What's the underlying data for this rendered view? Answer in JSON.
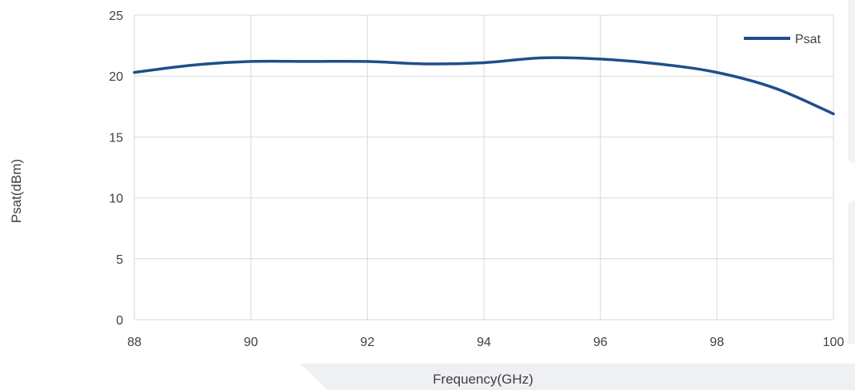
{
  "chart_data": {
    "type": "line",
    "title": "",
    "xlabel": "Frequency(GHz)",
    "ylabel": "Psat(dBm)",
    "xlim": [
      88,
      100
    ],
    "ylim": [
      0,
      25
    ],
    "x_ticks": [
      "88",
      "90",
      "92",
      "94",
      "96",
      "98",
      "100"
    ],
    "y_ticks": [
      "0",
      "5",
      "10",
      "15",
      "20",
      "25"
    ],
    "grid": true,
    "legend_position": "top-right",
    "series": [
      {
        "name": "Psat",
        "color": "#1f4e8c",
        "x": [
          88,
          89,
          90,
          91,
          92,
          93,
          94,
          95,
          96,
          97,
          98,
          99,
          100
        ],
        "y": [
          20.3,
          20.9,
          21.2,
          21.2,
          21.2,
          21.0,
          21.1,
          21.5,
          21.4,
          21.0,
          20.3,
          19.0,
          16.9
        ]
      }
    ]
  }
}
